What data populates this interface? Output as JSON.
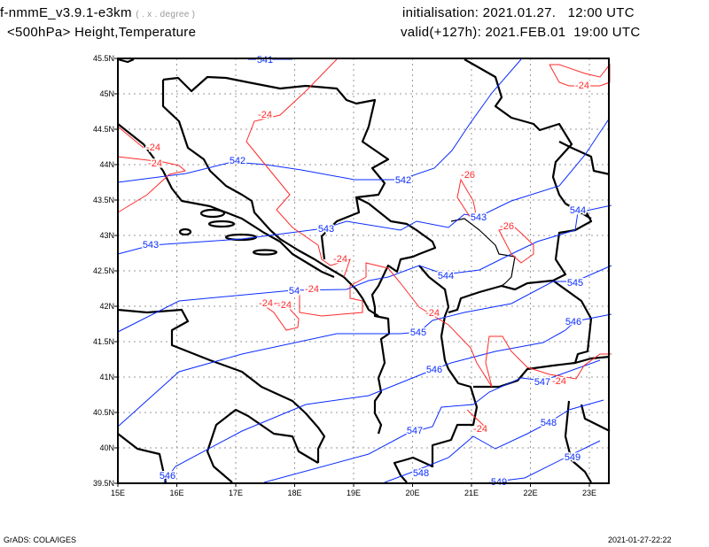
{
  "header": {
    "model": "f-nmmE_v3.9.1-e3km",
    "projection": "( . x . degree )",
    "field": "<500hPa> Height,Temperature",
    "init": "initialisation: 2021.01.27.   12:00 UTC",
    "valid": "valid(+127h): 2021.FEB.01  19:00 UTC"
  },
  "axes": {
    "x_ticks": [
      "15E",
      "16E",
      "17E",
      "18E",
      "19E",
      "20E",
      "21E",
      "22E",
      "23E"
    ],
    "y_ticks": [
      "45.5N",
      "45N",
      "44.5N",
      "44N",
      "43.5N",
      "43N",
      "42.5N",
      "42N",
      "41.5N",
      "41N",
      "40.5N",
      "40N",
      "39.5N"
    ]
  },
  "contour_labels": {
    "height": [
      "541",
      "542",
      "542",
      "543",
      "543",
      "543",
      "54",
      "544",
      "544",
      "545",
      "545",
      "546",
      "546",
      "546",
      "547",
      "547",
      "548",
      "548",
      "549",
      "549"
    ],
    "temperature": [
      "-24",
      "-24",
      "-24",
      "-24",
      "-26",
      "-26",
      "-24",
      "-24",
      "-24",
      "-24",
      "-24",
      "-24",
      "-24"
    ]
  },
  "colors": {
    "height": "#0a2cff",
    "temperature": "#ff2a2a",
    "borders": "#000000"
  },
  "footer": {
    "left": "GrADS: COLA/IGES",
    "right": "2021-01-27-22:22"
  }
}
